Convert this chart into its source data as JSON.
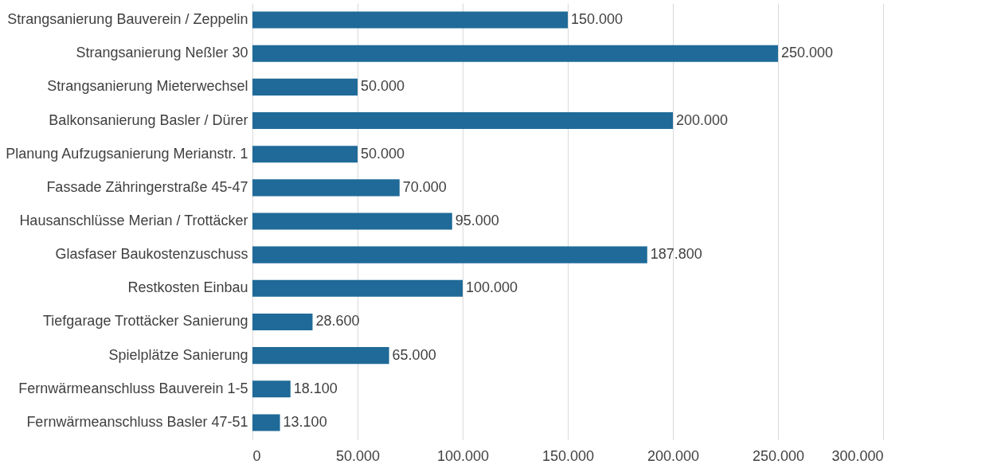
{
  "chart_data": {
    "type": "bar",
    "orientation": "horizontal",
    "categories": [
      "Strangsanierung Bauverein / Zeppelin",
      "Strangsanierung Neßler 30",
      "Strangsanierung Mieterwechsel",
      "Balkonsanierung Basler / Dürer",
      "Planung Aufzugsanierung Merianstr. 1",
      "Fassade Zähringerstraße 45-47",
      "Hausanschlüsse Merian / Trottäcker",
      "Glasfaser Baukostenzuschuss",
      "Restkosten Einbau",
      "Tiefgarage Trottäcker Sanierung",
      "Spielplätze Sanierung",
      "Fernwärmeanschluss Bauverein 1-5",
      "Fernwärmeanschluss Basler 47-51"
    ],
    "values": [
      150000,
      250000,
      50000,
      200000,
      50000,
      70000,
      95000,
      187800,
      100000,
      28600,
      65000,
      18100,
      13100
    ],
    "value_labels": [
      "150.000",
      "250.000",
      "50.000",
      "200.000",
      "50.000",
      "70.000",
      "95.000",
      "187.800",
      "100.000",
      "28.600",
      "65.000",
      "18.100",
      "13.100"
    ],
    "color": "#1f6a98",
    "xlim": [
      0,
      300000
    ],
    "xticks": [
      0,
      {
        "value": 50000,
        "label": "50.000"
      },
      {
        "value": 100000,
        "label": "100.000"
      },
      {
        "value": 150000,
        "label": "150.000"
      },
      {
        "value": 200000,
        "label": "200.000"
      },
      {
        "value": 250000,
        "label": "250.000"
      },
      {
        "value": 300000,
        "label": "300.000"
      }
    ],
    "grid": "x"
  }
}
